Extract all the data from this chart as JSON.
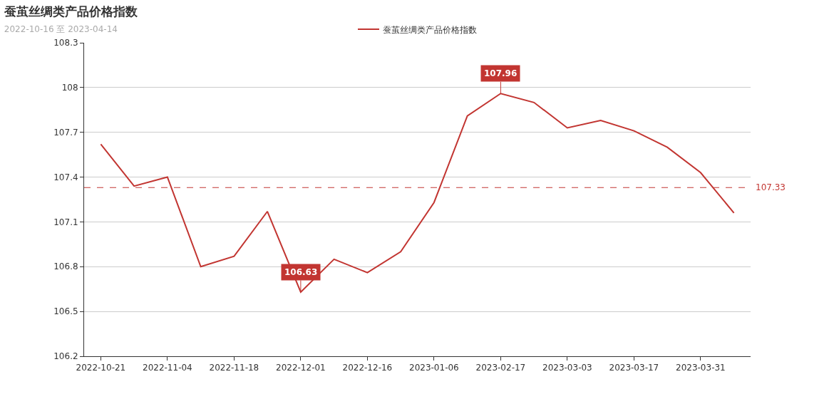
{
  "chart_data": {
    "type": "line",
    "title": "蚕茧丝绸类产品价格指数",
    "subtitle": "2022-10-16 至 2023-04-14",
    "categories": [
      "2022-10-21",
      null,
      "2022-11-04",
      null,
      "2022-11-18",
      null,
      "2022-12-01",
      null,
      "2022-12-16",
      null,
      "2023-01-06",
      null,
      "2023-02-17",
      null,
      "2023-03-03",
      null,
      "2023-03-17",
      null,
      "2023-03-31",
      null
    ],
    "series": [
      {
        "name": "蚕茧丝绸类产品价格指数",
        "color": "#c23531",
        "values": [
          107.62,
          107.34,
          107.4,
          106.8,
          106.87,
          107.17,
          106.63,
          106.85,
          106.76,
          106.9,
          107.23,
          107.81,
          107.96,
          107.9,
          107.73,
          107.78,
          107.71,
          107.6,
          107.43,
          107.16
        ]
      }
    ],
    "ylim": [
      106.2,
      108.3
    ],
    "yticks": [
      106.2,
      106.5,
      106.8,
      107.1,
      107.4,
      107.7,
      108,
      108.3
    ],
    "grid": "y",
    "legend": "top",
    "line_style": "solid",
    "ref_lines": [
      {
        "axis": "y",
        "value": 107.33,
        "label": "107.33",
        "color": "#c23531",
        "line_style": "dashed"
      }
    ],
    "annotations": [
      {
        "text": "107.96",
        "x": "2023-02-17",
        "y": 107.96
      },
      {
        "text": "106.63",
        "x": "2022-12-01",
        "y": 106.63
      }
    ]
  }
}
